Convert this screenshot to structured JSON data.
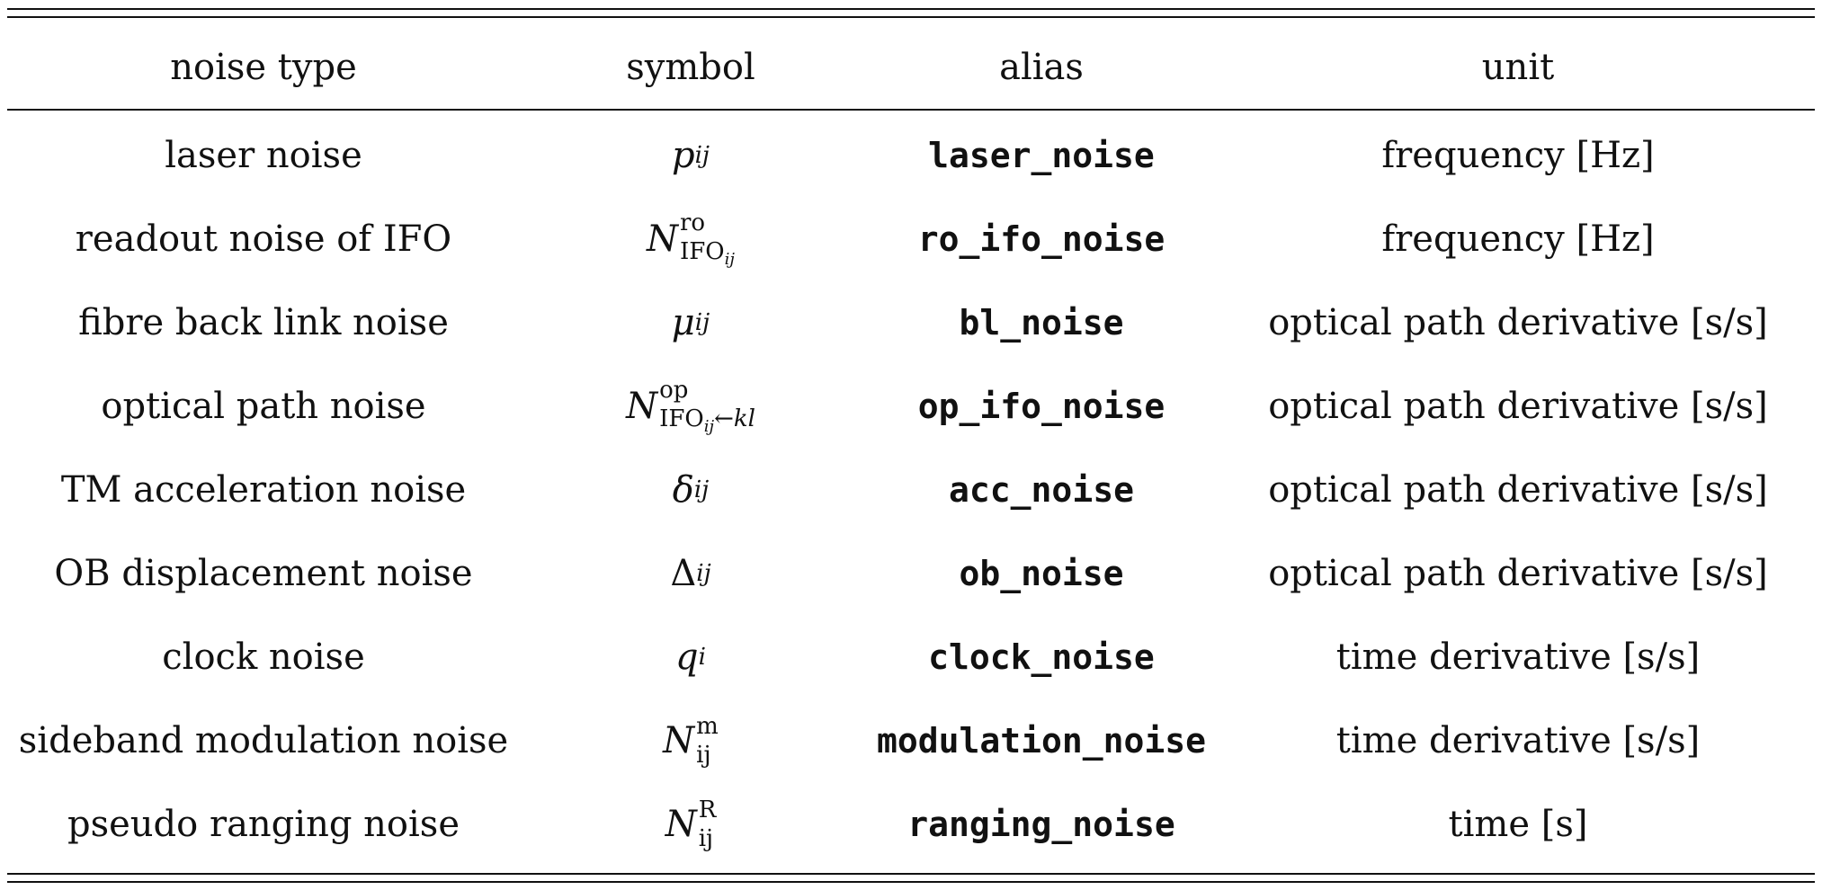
{
  "headers": {
    "noise_type": "noise type",
    "symbol": "symbol",
    "alias": "alias",
    "unit": "unit"
  },
  "rows": [
    {
      "noise_type": "laser noise",
      "symbol": {
        "base": "p",
        "sup": "",
        "sub": "ij"
      },
      "alias": "laser_noise",
      "unit": "frequency [Hz]"
    },
    {
      "noise_type": "readout noise of IFO",
      "symbol": {
        "base": "N",
        "sup": "ro",
        "sub": "IFO",
        "subsub": "ij"
      },
      "alias": "ro_ifo_noise",
      "unit": "frequency [Hz]"
    },
    {
      "noise_type": "fibre back link noise",
      "symbol": {
        "base": "μ",
        "sup": "",
        "sub": "ij"
      },
      "alias": "bl_noise",
      "unit": "optical path derivative [s/s]"
    },
    {
      "noise_type": "optical path noise",
      "symbol": {
        "base": "N",
        "sup": "op",
        "sub": "IFO",
        "subsub": "ij",
        "sub_tail": "←kl"
      },
      "alias": "op_ifo_noise",
      "unit": "optical path derivative [s/s]"
    },
    {
      "noise_type": "TM acceleration noise",
      "symbol": {
        "base": "δ",
        "sup": "",
        "sub": "ij"
      },
      "alias": "acc_noise",
      "unit": "optical path derivative [s/s]"
    },
    {
      "noise_type": "OB displacement noise",
      "symbol": {
        "base": "Δ",
        "sup": "",
        "sub": "ij"
      },
      "alias": "ob_noise",
      "unit": "optical path derivative [s/s]"
    },
    {
      "noise_type": "clock noise",
      "symbol": {
        "base": "q",
        "sup": "",
        "sub": "i"
      },
      "alias": "clock_noise",
      "unit": "time derivative [s/s]"
    },
    {
      "noise_type": "sideband modulation noise",
      "symbol": {
        "base": "N",
        "sup": "m",
        "sub": "ij"
      },
      "alias": "modulation_noise",
      "unit": "time derivative [s/s]"
    },
    {
      "noise_type": "pseudo ranging noise",
      "symbol": {
        "base": "N",
        "sup": "R",
        "sub": "ij"
      },
      "alias": "ranging_noise",
      "unit": "time [s]"
    }
  ]
}
